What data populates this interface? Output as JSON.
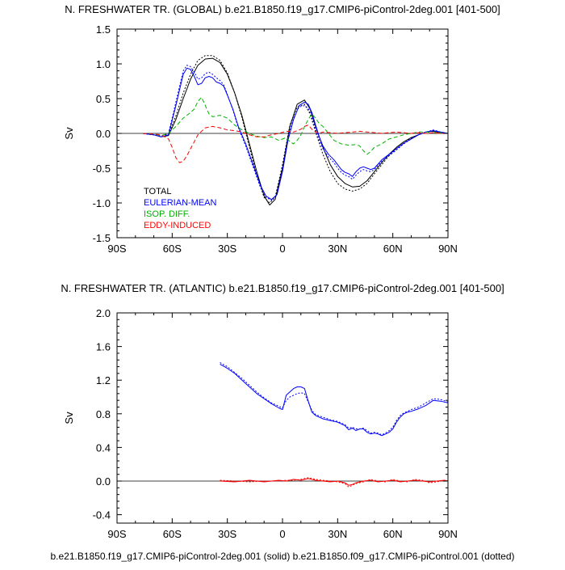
{
  "figure": {
    "footer": "b.e21.B1850.f19_g17.CMIP6-piControl-2deg.001 (solid) b.e21.B1850.f09_g17.CMIP6-piControl.001 (dotted)"
  },
  "colors": {
    "total": "#000000",
    "eulerian": "#0000ff",
    "isop": "#00b000",
    "eddy": "#ff0000",
    "zero": "#000000"
  },
  "chart_data": [
    {
      "type": "line",
      "title": "N. FRESHWATER TR. (GLOBAL) b.e21.B1850.f19_g17.CMIP6-piControl-2deg.001 [401-500]",
      "xlabel": "",
      "ylabel": "Sv",
      "xlim": [
        -90,
        90
      ],
      "ylim": [
        -1.5,
        1.5
      ],
      "xticks": [
        -90,
        -60,
        -30,
        0,
        30,
        60,
        90
      ],
      "xtick_labels": [
        "90S",
        "60S",
        "30S",
        "0",
        "30N",
        "60N",
        "90N"
      ],
      "yticks": [
        -1.5,
        -1.0,
        -0.5,
        0.0,
        0.5,
        1.0,
        1.5
      ],
      "ytick_labels": [
        "-1.5",
        "-1.0",
        "-0.5",
        "0.0",
        "0.5",
        "1.0",
        "1.5"
      ],
      "legend": {
        "placement": "lower-left",
        "entries": [
          "TOTAL",
          "EULERIAN-MEAN",
          "ISOP. DIFF.",
          "EDDY-INDUCED"
        ]
      },
      "series": [
        {
          "name": "TOTAL",
          "style": "solid",
          "color_key": "total",
          "x": [
            -76,
            -70,
            -66,
            -62,
            -58,
            -54,
            -50,
            -46,
            -42,
            -38,
            -34,
            -30,
            -26,
            -22,
            -18,
            -14,
            -10,
            -7,
            -4,
            0,
            4,
            8,
            12,
            15,
            18,
            22,
            26,
            30,
            34,
            38,
            42,
            46,
            50,
            54,
            58,
            62,
            66,
            70,
            74,
            78,
            82,
            86,
            90
          ],
          "values": [
            0,
            -0.02,
            -0.05,
            -0.03,
            0.2,
            0.5,
            0.78,
            0.98,
            1.07,
            1.08,
            1.02,
            0.85,
            0.58,
            0.25,
            -0.15,
            -0.55,
            -0.9,
            -1.03,
            -0.95,
            -0.5,
            0.1,
            0.42,
            0.48,
            0.35,
            0.1,
            -0.2,
            -0.45,
            -0.62,
            -0.72,
            -0.77,
            -0.76,
            -0.68,
            -0.55,
            -0.42,
            -0.3,
            -0.2,
            -0.12,
            -0.06,
            -0.02,
            0.02,
            0.03,
            0.01,
            0
          ]
        },
        {
          "name": "TOTAL (dotted)",
          "style": "dotted",
          "color_key": "total",
          "x": [
            -76,
            -70,
            -66,
            -62,
            -58,
            -54,
            -50,
            -46,
            -42,
            -38,
            -34,
            -30,
            -26,
            -22,
            -18,
            -14,
            -10,
            -7,
            -4,
            0,
            4,
            8,
            12,
            15,
            18,
            22,
            26,
            30,
            34,
            38,
            42,
            46,
            50,
            54,
            58,
            62,
            66,
            70,
            74,
            78,
            82,
            86,
            90
          ],
          "values": [
            0,
            -0.02,
            -0.04,
            -0.01,
            0.25,
            0.58,
            0.85,
            1.05,
            1.12,
            1.12,
            1.05,
            0.87,
            0.58,
            0.22,
            -0.2,
            -0.6,
            -0.92,
            -1.0,
            -0.92,
            -0.45,
            0.12,
            0.38,
            0.42,
            0.28,
            0.02,
            -0.3,
            -0.55,
            -0.72,
            -0.8,
            -0.83,
            -0.8,
            -0.72,
            -0.58,
            -0.45,
            -0.32,
            -0.22,
            -0.14,
            -0.07,
            -0.02,
            0.02,
            0.04,
            0.01,
            0
          ]
        },
        {
          "name": "EULERIAN-MEAN",
          "style": "solid",
          "color_key": "eulerian",
          "x": [
            -76,
            -70,
            -66,
            -62,
            -58,
            -54,
            -52,
            -50,
            -48,
            -46,
            -44,
            -42,
            -40,
            -38,
            -36,
            -34,
            -32,
            -30,
            -27,
            -24,
            -20,
            -16,
            -12,
            -9,
            -6,
            -3,
            0,
            3,
            6,
            9,
            12,
            14,
            16,
            18,
            20,
            22,
            25,
            28,
            30,
            32,
            34,
            36,
            38,
            40,
            42,
            44,
            46,
            48,
            50,
            54,
            58,
            62,
            66,
            70,
            74,
            78,
            82,
            86,
            90
          ],
          "values": [
            0,
            -0.02,
            -0.05,
            -0.02,
            0.4,
            0.85,
            0.94,
            0.92,
            0.82,
            0.7,
            0.72,
            0.8,
            0.82,
            0.8,
            0.74,
            0.72,
            0.68,
            0.55,
            0.35,
            0.1,
            -0.15,
            -0.45,
            -0.75,
            -0.9,
            -0.95,
            -0.88,
            -0.55,
            -0.1,
            0.2,
            0.4,
            0.45,
            0.42,
            0.3,
            0.12,
            -0.05,
            -0.18,
            -0.3,
            -0.38,
            -0.45,
            -0.52,
            -0.56,
            -0.58,
            -0.62,
            -0.55,
            -0.5,
            -0.48,
            -0.5,
            -0.52,
            -0.5,
            -0.38,
            -0.3,
            -0.22,
            -0.14,
            -0.08,
            -0.02,
            0.02,
            0.04,
            0.02,
            0
          ]
        },
        {
          "name": "EULERIAN-MEAN (dotted)",
          "style": "dotted",
          "color_key": "eulerian",
          "x": [
            -76,
            -70,
            -66,
            -62,
            -58,
            -54,
            -52,
            -50,
            -48,
            -46,
            -44,
            -42,
            -40,
            -38,
            -36,
            -34,
            -32,
            -30,
            -27,
            -24,
            -20,
            -16,
            -12,
            -9,
            -6,
            -3,
            0,
            3,
            6,
            9,
            12,
            14,
            16,
            18,
            20,
            22,
            25,
            28,
            30,
            32,
            34,
            36,
            38,
            40,
            42,
            44,
            46,
            48,
            50,
            54,
            58,
            62,
            66,
            70,
            74,
            78,
            82,
            86,
            90
          ],
          "values": [
            0,
            -0.02,
            -0.04,
            0,
            0.45,
            0.9,
            0.98,
            0.96,
            0.88,
            0.78,
            0.8,
            0.86,
            0.88,
            0.85,
            0.8,
            0.76,
            0.7,
            0.56,
            0.34,
            0.08,
            -0.18,
            -0.48,
            -0.78,
            -0.92,
            -0.96,
            -0.88,
            -0.52,
            -0.06,
            0.22,
            0.38,
            0.4,
            0.36,
            0.24,
            0.06,
            -0.1,
            -0.22,
            -0.34,
            -0.42,
            -0.5,
            -0.56,
            -0.6,
            -0.62,
            -0.66,
            -0.6,
            -0.55,
            -0.52,
            -0.54,
            -0.55,
            -0.52,
            -0.4,
            -0.32,
            -0.24,
            -0.15,
            -0.08,
            -0.02,
            0.02,
            0.05,
            0.02,
            0
          ]
        },
        {
          "name": "ISOP. DIFF.",
          "style": "dashed",
          "color_key": "isop",
          "x": [
            -76,
            -70,
            -66,
            -62,
            -58,
            -54,
            -50,
            -48,
            -46,
            -44,
            -42,
            -40,
            -38,
            -34,
            -30,
            -26,
            -22,
            -18,
            -14,
            -10,
            -6,
            -2,
            2,
            4,
            6,
            8,
            10,
            12,
            14,
            16,
            18,
            20,
            22,
            25,
            28,
            32,
            36,
            40,
            42,
            44,
            46,
            48,
            50,
            54,
            58,
            62,
            66,
            70,
            74,
            78,
            82,
            86,
            90
          ],
          "values": [
            0,
            -0.01,
            -0.03,
            0,
            0.1,
            0.22,
            0.3,
            0.35,
            0.46,
            0.52,
            0.4,
            0.28,
            0.24,
            0.26,
            0.22,
            0.12,
            0.05,
            0,
            -0.04,
            -0.06,
            -0.05,
            -0.1,
            -0.06,
            -0.12,
            -0.15,
            -0.1,
            -0.02,
            0.1,
            0.2,
            0.28,
            0.22,
            0.14,
            0.1,
            0,
            -0.1,
            -0.15,
            -0.17,
            -0.16,
            -0.18,
            -0.25,
            -0.3,
            -0.26,
            -0.2,
            -0.15,
            -0.08,
            -0.05,
            -0.02,
            0,
            0.02,
            0.02,
            0.01,
            0.01,
            0
          ]
        },
        {
          "name": "EDDY-INDUCED",
          "style": "dashed",
          "color_key": "eddy",
          "x": [
            -76,
            -70,
            -66,
            -62,
            -60,
            -58,
            -56,
            -54,
            -52,
            -50,
            -48,
            -46,
            -42,
            -38,
            -34,
            -30,
            -26,
            -22,
            -18,
            -14,
            -10,
            -6,
            -2,
            2,
            6,
            10,
            12,
            14,
            16,
            18,
            20,
            22,
            26,
            30,
            34,
            38,
            42,
            46,
            50,
            54,
            58,
            62,
            66,
            70,
            74,
            78,
            82,
            86,
            90
          ],
          "values": [
            0,
            -0.01,
            -0.02,
            -0.08,
            -0.2,
            -0.35,
            -0.42,
            -0.4,
            -0.32,
            -0.22,
            -0.12,
            -0.02,
            0.08,
            0.1,
            0.08,
            0.05,
            0.04,
            0.02,
            -0.02,
            -0.05,
            -0.05,
            -0.02,
            0,
            0.03,
            0.02,
            0.06,
            0.1,
            0.12,
            0.06,
            0.02,
            0,
            0.02,
            0.01,
            0,
            0.01,
            0.02,
            0.03,
            0.02,
            0.01,
            0,
            0.01,
            0.02,
            0.01,
            0,
            0.01,
            0,
            0.01,
            0,
            0
          ]
        }
      ]
    },
    {
      "type": "line",
      "title": "N. FRESHWATER TR. (ATLANTIC) b.e21.B1850.f19_g17.CMIP6-piControl-2deg.001 [401-500]",
      "xlabel": "",
      "ylabel": "Sv",
      "xlim": [
        -90,
        90
      ],
      "ylim": [
        -0.5,
        2.0
      ],
      "xticks": [
        -90,
        -60,
        -30,
        0,
        30,
        60,
        90
      ],
      "xtick_labels": [
        "90S",
        "60S",
        "30S",
        "0",
        "30N",
        "60N",
        "90N"
      ],
      "yticks": [
        -0.4,
        0.0,
        0.4,
        0.8,
        1.2,
        1.6,
        2.0
      ],
      "ytick_labels": [
        "-0.4",
        "0.0",
        "0.4",
        "0.8",
        "1.2",
        "1.6",
        "2.0"
      ],
      "series": [
        {
          "name": "EULERIAN-MEAN",
          "style": "solid",
          "color_key": "eulerian",
          "x": [
            -34,
            -30,
            -26,
            -22,
            -18,
            -14,
            -10,
            -6,
            -2,
            0,
            2,
            4,
            6,
            8,
            10,
            12,
            14,
            16,
            18,
            22,
            26,
            30,
            34,
            36,
            38,
            40,
            42,
            44,
            46,
            48,
            50,
            52,
            54,
            56,
            58,
            60,
            62,
            64,
            66,
            68,
            70,
            74,
            78,
            82,
            86,
            90
          ],
          "values": [
            1.39,
            1.34,
            1.28,
            1.2,
            1.12,
            1.04,
            0.98,
            0.92,
            0.87,
            0.85,
            1.02,
            1.06,
            1.1,
            1.12,
            1.12,
            1.1,
            0.95,
            0.82,
            0.78,
            0.74,
            0.72,
            0.7,
            0.66,
            0.61,
            0.63,
            0.6,
            0.62,
            0.62,
            0.58,
            0.56,
            0.57,
            0.56,
            0.54,
            0.56,
            0.58,
            0.62,
            0.7,
            0.76,
            0.8,
            0.82,
            0.83,
            0.86,
            0.9,
            0.96,
            0.95,
            0.93
          ]
        },
        {
          "name": "EULERIAN-MEAN (dotted)",
          "style": "dotted",
          "color_key": "eulerian",
          "x": [
            -34,
            -30,
            -26,
            -22,
            -18,
            -14,
            -10,
            -6,
            -2,
            0,
            2,
            4,
            6,
            8,
            10,
            12,
            14,
            16,
            18,
            22,
            26,
            30,
            34,
            36,
            38,
            40,
            42,
            44,
            46,
            48,
            50,
            52,
            54,
            56,
            58,
            60,
            62,
            64,
            66,
            68,
            70,
            74,
            78,
            82,
            86,
            90
          ],
          "values": [
            1.41,
            1.36,
            1.29,
            1.22,
            1.14,
            1.06,
            0.99,
            0.93,
            0.89,
            0.87,
            0.96,
            1.0,
            1.02,
            1.04,
            1.05,
            1.04,
            0.94,
            0.84,
            0.79,
            0.76,
            0.73,
            0.71,
            0.67,
            0.63,
            0.64,
            0.62,
            0.62,
            0.63,
            0.6,
            0.57,
            0.58,
            0.57,
            0.55,
            0.57,
            0.6,
            0.64,
            0.72,
            0.78,
            0.81,
            0.83,
            0.85,
            0.88,
            0.93,
            0.98,
            0.97,
            0.94
          ]
        },
        {
          "name": "EDDY-INDUCED",
          "style": "solid",
          "color_key": "eddy",
          "x": [
            -34,
            -26,
            -18,
            -10,
            -2,
            2,
            6,
            10,
            14,
            18,
            22,
            26,
            30,
            34,
            36,
            38,
            40,
            44,
            48,
            52,
            56,
            60,
            64,
            68,
            72,
            76,
            80,
            84,
            88,
            90
          ],
          "values": [
            0.0,
            -0.01,
            0.01,
            -0.01,
            0.01,
            0.0,
            0.02,
            0.01,
            0.03,
            0.01,
            0.0,
            -0.01,
            0.0,
            -0.02,
            -0.05,
            -0.04,
            -0.02,
            0.0,
            0.01,
            -0.01,
            0.0,
            0.01,
            -0.01,
            0.0,
            0.01,
            0.0,
            -0.01,
            0.0,
            0.01,
            0.0
          ]
        },
        {
          "name": "EDDY-INDUCED (dotted)",
          "style": "dotted",
          "color_key": "eddy",
          "x": [
            -34,
            -26,
            -18,
            -10,
            -2,
            2,
            6,
            10,
            14,
            18,
            22,
            26,
            30,
            34,
            36,
            38,
            40,
            44,
            48,
            52,
            56,
            60,
            64,
            68,
            72,
            76,
            80,
            84,
            88,
            90
          ],
          "values": [
            0.01,
            0.0,
            -0.01,
            0.0,
            0.0,
            0.01,
            0.01,
            0.02,
            0.04,
            0.02,
            0.01,
            0.0,
            -0.01,
            -0.03,
            -0.07,
            -0.05,
            -0.03,
            -0.01,
            0.02,
            0.0,
            -0.01,
            0.02,
            0.0,
            -0.01,
            0.02,
            0.01,
            -0.02,
            -0.01,
            0.01,
            0.0
          ]
        }
      ]
    }
  ]
}
